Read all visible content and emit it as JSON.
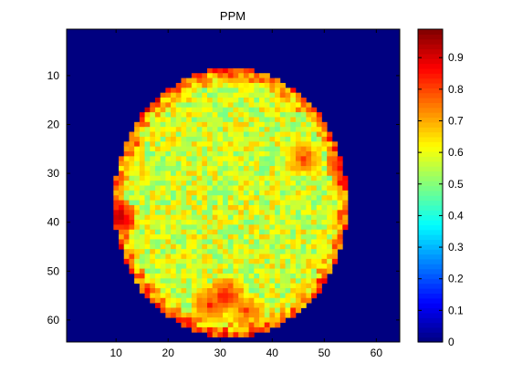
{
  "chart_data": {
    "type": "heatmap",
    "title": "PPM",
    "xlabel": "",
    "ylabel": "",
    "grid": false,
    "colormap": "jet",
    "x_range": [
      0.5,
      64.5
    ],
    "y_range": [
      0.5,
      64.5
    ],
    "y_direction": "top-to-bottom",
    "x_ticks": [
      "10",
      "20",
      "30",
      "40",
      "50",
      "60"
    ],
    "y_ticks": [
      "10",
      "20",
      "30",
      "40",
      "50",
      "60"
    ],
    "colorbar": {
      "placement": "right",
      "range": [
        0,
        0.99
      ],
      "ticks": [
        "0",
        "0.1",
        "0.2",
        "0.3",
        "0.4",
        "0.5",
        "0.6",
        "0.7",
        "0.8",
        "0.9"
      ]
    },
    "region": {
      "shape": "ellipse",
      "center": [
        32,
        36
      ],
      "radius_x": 22.5,
      "radius_y": 27.5,
      "background_value": 0,
      "typical_value": 0.58,
      "value_range": [
        0.35,
        0.99
      ]
    },
    "hotspots": [
      {
        "x": 31,
        "y": 55,
        "value": 0.85
      },
      {
        "x": 28,
        "y": 57,
        "value": 0.82
      },
      {
        "x": 35,
        "y": 58,
        "value": 0.8
      },
      {
        "x": 10,
        "y": 39,
        "value": 0.95
      },
      {
        "x": 46,
        "y": 27,
        "value": 0.8
      },
      {
        "x": 54,
        "y": 28,
        "value": 0.9
      },
      {
        "x": 33,
        "y": 9,
        "value": 0.78
      }
    ]
  }
}
